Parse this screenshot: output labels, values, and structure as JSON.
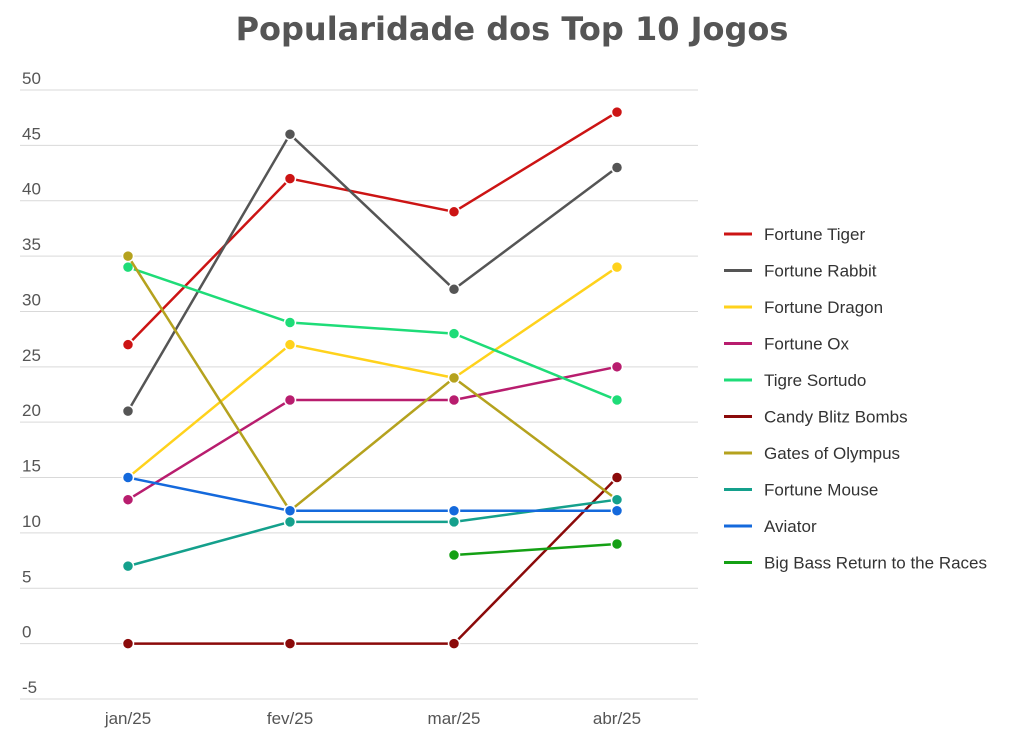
{
  "chart_data": {
    "type": "line",
    "title": "Popularidade dos Top 10 Jogos",
    "xlabel": "",
    "ylabel": "",
    "categories": [
      "jan/25",
      "fev/25",
      "mar/25",
      "abr/25"
    ],
    "ylim": [
      -5,
      50
    ],
    "yticks": [
      "50",
      "45",
      "40",
      "35",
      "30",
      "25",
      "20",
      "15",
      "10",
      "5",
      "0",
      "-5"
    ],
    "grid": true,
    "legend_position": "right",
    "series": [
      {
        "name": "Fortune Tiger",
        "color": "#cc1414",
        "values": [
          27,
          42,
          39,
          48
        ]
      },
      {
        "name": "Fortune Rabbit",
        "color": "#555555",
        "values": [
          21,
          46,
          32,
          43
        ]
      },
      {
        "name": "Fortune Dragon",
        "color": "#ffd21c",
        "values": [
          15,
          27,
          24,
          34
        ]
      },
      {
        "name": "Fortune Ox",
        "color": "#b81d6e",
        "values": [
          13,
          22,
          22,
          25
        ]
      },
      {
        "name": "Tigre Sortudo",
        "color": "#1edc78",
        "values": [
          34,
          29,
          28,
          22
        ]
      },
      {
        "name": "Candy Blitz Bombs",
        "color": "#8b0a0a",
        "values": [
          0,
          0,
          0,
          15
        ]
      },
      {
        "name": "Gates of Olympus",
        "color": "#b5a21e",
        "values": [
          35,
          12,
          24,
          13
        ]
      },
      {
        "name": "Fortune Mouse",
        "color": "#14a08c",
        "values": [
          7,
          11,
          11,
          13
        ]
      },
      {
        "name": "Aviator",
        "color": "#1469dc",
        "values": [
          15,
          12,
          12,
          12
        ]
      },
      {
        "name": "Big Bass Return to the Races",
        "color": "#14a014",
        "values": [
          null,
          null,
          8,
          9
        ]
      }
    ]
  }
}
